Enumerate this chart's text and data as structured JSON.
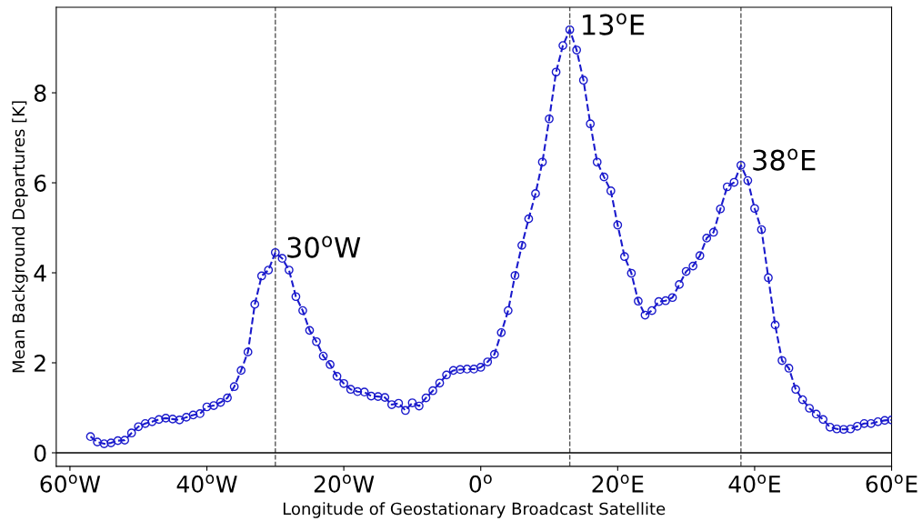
{
  "chart_data": {
    "type": "line",
    "xlabel": "Longitude of Geostationary Broadcast Satellite",
    "ylabel": "Mean Background Departures [K]",
    "xlim": [
      -62,
      60
    ],
    "ylim": [
      -0.3,
      9.9
    ],
    "xticks": [
      {
        "value": -60,
        "label": "60$^{o}$W"
      },
      {
        "value": -40,
        "label": "40$^{o}$W"
      },
      {
        "value": -20,
        "label": "20$^{o}$W"
      },
      {
        "value": 0,
        "label": "0$^{o}$"
      },
      {
        "value": 20,
        "label": "20$^{o}$E"
      },
      {
        "value": 40,
        "label": "40$^{o}$E"
      },
      {
        "value": 60,
        "label": "60$^{o}$E"
      }
    ],
    "yticks": [
      0,
      2,
      4,
      6,
      8
    ],
    "x": [
      -57,
      -56,
      -55,
      -54,
      -53,
      -52,
      -51,
      -50,
      -49,
      -48,
      -47,
      -46,
      -45,
      -44,
      -43,
      -42,
      -41,
      -40,
      -39,
      -38,
      -37,
      -36,
      -35,
      -34,
      -33,
      -32,
      -31,
      -30,
      -29,
      -28,
      -27,
      -26,
      -25,
      -24,
      -23,
      -22,
      -21,
      -20,
      -19,
      -18,
      -17,
      -16,
      -15,
      -14,
      -13,
      -12,
      -11,
      -10,
      -9,
      -8,
      -7,
      -6,
      -5,
      -4,
      -3,
      -2,
      -1,
      0,
      1,
      2,
      3,
      4,
      5,
      6,
      7,
      8,
      9,
      10,
      11,
      12,
      13,
      14,
      15,
      16,
      17,
      18,
      19,
      20,
      21,
      22,
      23,
      24,
      25,
      26,
      27,
      28,
      29,
      30,
      31,
      32,
      33,
      34,
      35,
      36,
      37,
      38,
      39,
      40,
      41,
      42,
      43,
      44,
      45,
      46,
      47,
      48,
      49,
      50,
      51,
      52,
      53,
      54,
      55,
      56,
      57,
      58,
      59,
      60
    ],
    "series": [
      {
        "color": "#1a1acc",
        "marker": "circle",
        "line_style": "dashed",
        "values": [
          0.36,
          0.24,
          0.2,
          0.22,
          0.27,
          0.28,
          0.44,
          0.58,
          0.65,
          0.69,
          0.74,
          0.77,
          0.75,
          0.73,
          0.79,
          0.84,
          0.87,
          1.02,
          1.05,
          1.12,
          1.22,
          1.47,
          1.83,
          2.24,
          3.3,
          3.93,
          4.06,
          4.45,
          4.32,
          4.06,
          3.47,
          3.16,
          2.72,
          2.47,
          2.15,
          1.96,
          1.7,
          1.54,
          1.41,
          1.36,
          1.35,
          1.26,
          1.25,
          1.23,
          1.07,
          1.1,
          0.94,
          1.11,
          1.04,
          1.22,
          1.38,
          1.55,
          1.73,
          1.83,
          1.85,
          1.86,
          1.86,
          1.9,
          2.02,
          2.19,
          2.67,
          3.16,
          3.94,
          4.61,
          5.2,
          5.76,
          6.46,
          7.42,
          8.46,
          9.05,
          9.4,
          8.95,
          8.28,
          7.31,
          6.46,
          6.13,
          5.82,
          5.06,
          4.36,
          3.99,
          3.37,
          3.06,
          3.16,
          3.36,
          3.38,
          3.45,
          3.74,
          4.03,
          4.15,
          4.38,
          4.77,
          4.9,
          5.42,
          5.91,
          6.01,
          6.39,
          6.05,
          5.43,
          4.96,
          3.89,
          2.84,
          2.05,
          1.88,
          1.41,
          1.18,
          0.99,
          0.86,
          0.74,
          0.57,
          0.53,
          0.52,
          0.53,
          0.59,
          0.65,
          0.65,
          0.69,
          0.72,
          0.73
        ]
      }
    ],
    "ref_lines": [
      {
        "axis": "x",
        "value": -30,
        "color": "#555555",
        "line_style": "dashed"
      },
      {
        "axis": "x",
        "value": 13,
        "color": "#555555",
        "line_style": "dashed"
      },
      {
        "axis": "x",
        "value": 38,
        "color": "#555555",
        "line_style": "dashed"
      },
      {
        "axis": "y",
        "value": 0,
        "color": "#000000",
        "line_style": "solid"
      }
    ],
    "annotations": [
      {
        "text": "30$^{o}$W",
        "x": -30,
        "y": 4.45
      },
      {
        "text": "13$^{o}$E",
        "x": 13,
        "y": 9.4
      },
      {
        "text": "38$^{o}$E",
        "x": 38,
        "y": 6.39
      }
    ],
    "grid": false,
    "legend": false
  }
}
